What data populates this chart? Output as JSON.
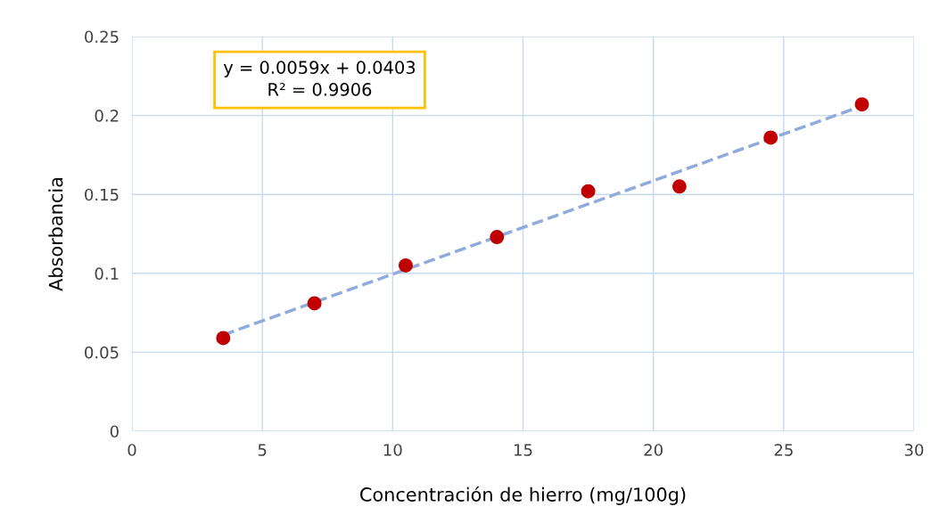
{
  "chart_data": {
    "type": "scatter",
    "xlabel": "Concentración de hierro (mg/100g)",
    "ylabel": "Absorbancia",
    "xlim": [
      0,
      30
    ],
    "xticks": [
      0,
      5,
      10,
      15,
      20,
      25,
      30
    ],
    "ylim": [
      0,
      0.25
    ],
    "yticks": [
      0,
      0.05,
      0.1,
      0.15,
      0.2,
      0.25
    ],
    "grid": true,
    "annotations": [
      "y = 0.0059x + 0.0403\nR² = 0.9906"
    ],
    "series": [
      {
        "marker": "circle",
        "color": "#c00000",
        "x": [
          3.5,
          7,
          10.5,
          14,
          17.5,
          21,
          24.5,
          28
        ],
        "values": [
          0.059,
          0.081,
          0.105,
          0.123,
          0.152,
          0.155,
          0.186,
          0.207
        ]
      },
      {
        "type": "line",
        "marker": "none",
        "color": "#8faadc",
        "line_style": "dashed",
        "x": [
          3.5,
          28
        ],
        "values": [
          0.061,
          0.206
        ]
      }
    ]
  }
}
